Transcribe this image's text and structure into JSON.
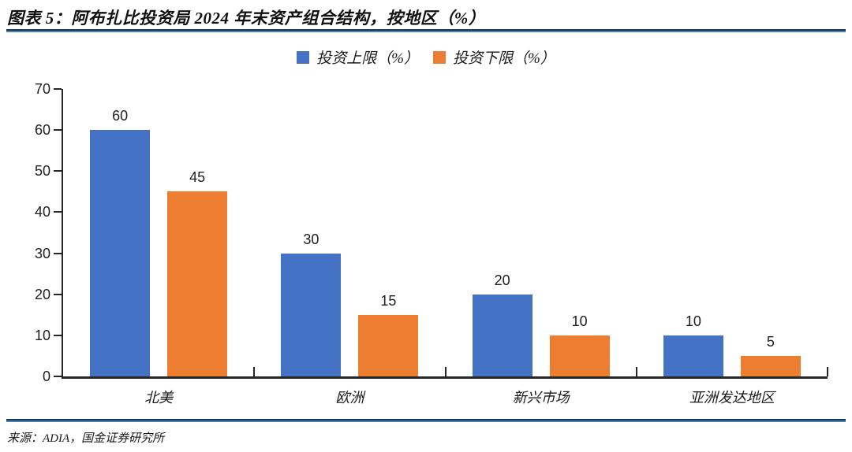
{
  "header": {
    "title": "图表 5：阿布扎比投资局 2024 年末资产组合结构，按地区（%）"
  },
  "legend": [
    {
      "label": "投资上限（%）",
      "color": "#4472C4"
    },
    {
      "label": "投资下限（%）",
      "color": "#ED7D31"
    }
  ],
  "chart_data": {
    "type": "bar",
    "title": "阿布扎比投资局2024年末资产组合结构，按地区（%）",
    "categories": [
      "北美",
      "欧洲",
      "新兴市场",
      "亚洲发达地区"
    ],
    "series": [
      {
        "name": "投资上限（%）",
        "color": "#4472C4",
        "values": [
          60,
          30,
          20,
          10
        ]
      },
      {
        "name": "投资下限（%）",
        "color": "#ED7D31",
        "values": [
          45,
          15,
          10,
          5
        ]
      }
    ],
    "xlabel": "",
    "ylabel": "",
    "ylim": [
      0,
      70
    ],
    "y_ticks": [
      0,
      10,
      20,
      30,
      40,
      50,
      60,
      70
    ],
    "grid": false,
    "legend_position": "top",
    "data_labels": true
  },
  "footer": {
    "source": "来源：ADIA，国金证券研究所"
  },
  "colors": {
    "axis": "#262626",
    "rule_dark": "#16365C",
    "rule_light": "#4E80AC"
  }
}
